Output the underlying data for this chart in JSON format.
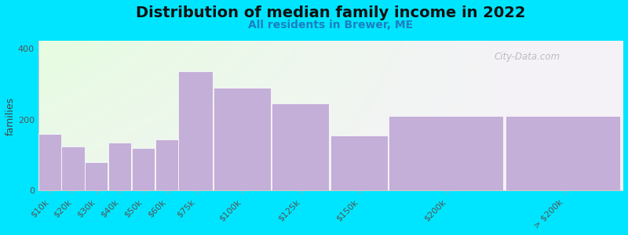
{
  "title": "Distribution of median family income in 2022",
  "subtitle": "All residents in Brewer, ME",
  "ylabel": "families",
  "categories": [
    "$10k",
    "$20k",
    "$30k",
    "$40k",
    "$50k",
    "$60k",
    "$75k",
    "$100k",
    "$125k",
    "$150k",
    "$200k",
    "> $200k"
  ],
  "values": [
    160,
    125,
    80,
    135,
    120,
    145,
    335,
    290,
    245,
    155,
    210,
    210
  ],
  "bar_color": "#c4afd8",
  "background_outer": "#00e5ff",
  "yticks": [
    0,
    200,
    400
  ],
  "ylim": [
    0,
    420
  ],
  "title_fontsize": 14,
  "subtitle_fontsize": 10,
  "ylabel_fontsize": 9,
  "tick_label_fontsize": 8,
  "watermark": "City-Data.com"
}
